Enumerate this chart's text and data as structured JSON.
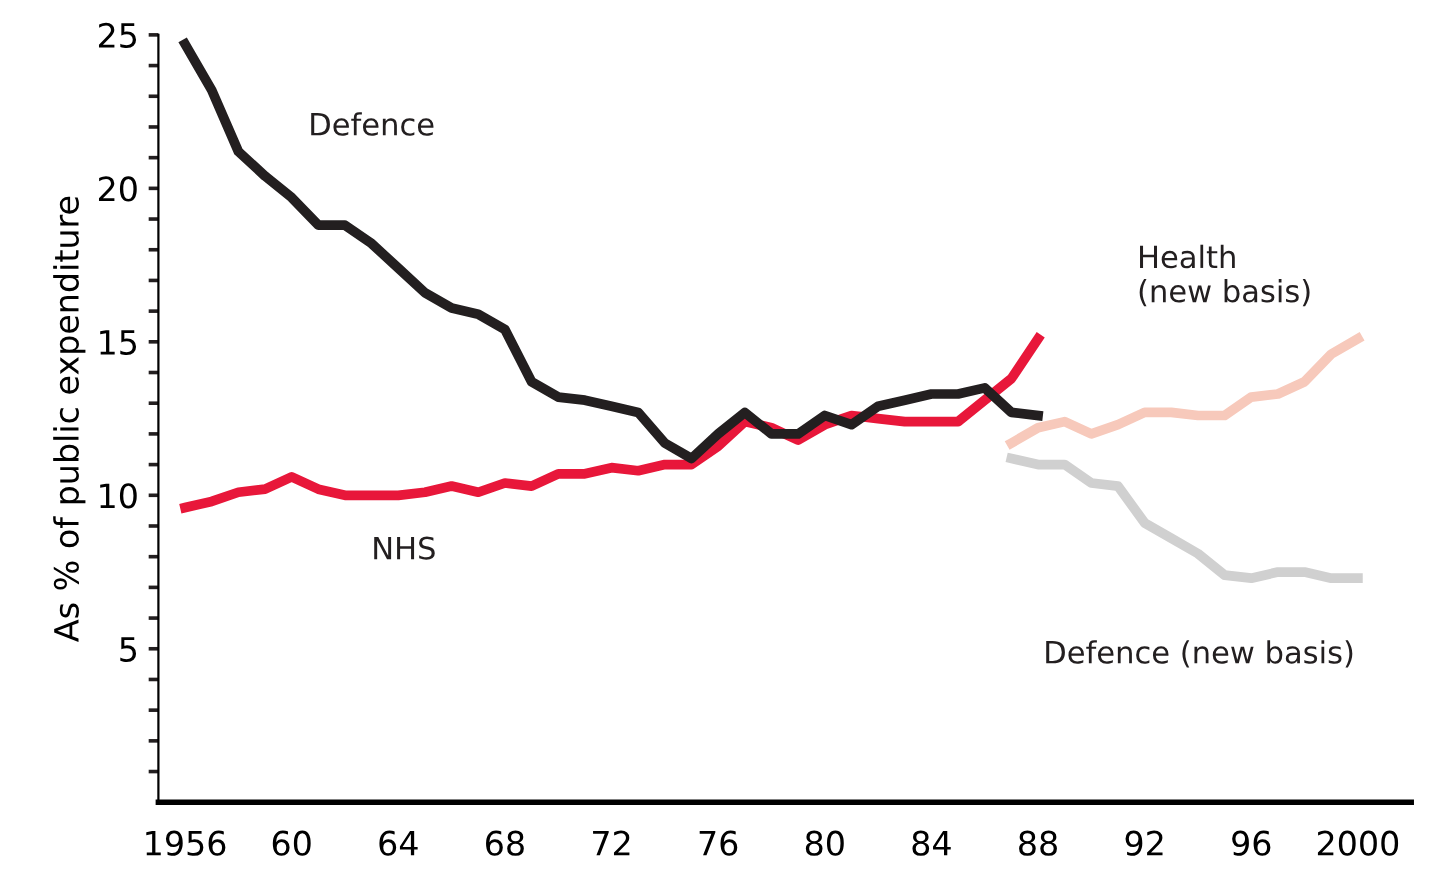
{
  "chart_data": {
    "type": "line",
    "ylabel": "As % of public expenditure",
    "line_style": "solid",
    "marker": "none",
    "grid": false,
    "legend": false,
    "xlim": [
      1955,
      2002
    ],
    "ylim": [
      0,
      25
    ],
    "xticks": [
      1956,
      {
        "value": 1960,
        "label": "60"
      },
      {
        "value": 1964,
        "label": "64"
      },
      {
        "value": 1968,
        "label": "68"
      },
      {
        "value": 1972,
        "label": "72"
      },
      {
        "value": 1976,
        "label": "76"
      },
      {
        "value": 1980,
        "label": "80"
      },
      {
        "value": 1984,
        "label": "84"
      },
      {
        "value": 1988,
        "label": "88"
      },
      {
        "value": 1992,
        "label": "92"
      },
      {
        "value": 1996,
        "label": "96"
      },
      2000
    ],
    "yticks": [
      {
        "value": 1,
        "label": null
      },
      {
        "value": 2,
        "label": null
      },
      {
        "value": 3,
        "label": null
      },
      {
        "value": 4,
        "label": null
      },
      5,
      {
        "value": 6,
        "label": null
      },
      {
        "value": 7,
        "label": null
      },
      {
        "value": 8,
        "label": null
      },
      {
        "value": 9,
        "label": null
      },
      10,
      {
        "value": 11,
        "label": null
      },
      {
        "value": 12,
        "label": null
      },
      {
        "value": 13,
        "label": null
      },
      {
        "value": 14,
        "label": null
      },
      15,
      {
        "value": 16,
        "label": null
      },
      {
        "value": 17,
        "label": null
      },
      {
        "value": 18,
        "label": null
      },
      {
        "value": 19,
        "label": null
      },
      20,
      {
        "value": 21,
        "label": null
      },
      {
        "value": 22,
        "label": null
      },
      {
        "value": 23,
        "label": null
      },
      {
        "value": 24,
        "label": null
      },
      25
    ],
    "series": [
      {
        "name": "NHS",
        "color": "#e8173a",
        "x": [
          1956,
          1957,
          1958,
          1959,
          1960,
          1961,
          1962,
          1963,
          1964,
          1965,
          1966,
          1967,
          1968,
          1969,
          1970,
          1971,
          1972,
          1973,
          1974,
          1975,
          1976,
          1977,
          1978,
          1979,
          1980,
          1981,
          1982,
          1983,
          1984,
          1985,
          1986,
          1987,
          1988
        ],
        "values": [
          9.6,
          9.8,
          10.1,
          10.2,
          10.6,
          10.2,
          10.0,
          10.0,
          10.0,
          10.1,
          10.3,
          10.1,
          10.4,
          10.3,
          10.7,
          10.7,
          10.9,
          10.8,
          11.0,
          11.0,
          11.6,
          12.4,
          12.2,
          11.8,
          12.3,
          12.6,
          12.5,
          12.4,
          12.4,
          12.4,
          13.1,
          13.8,
          15.1
        ]
      },
      {
        "name": "Defence",
        "color": "#231f20",
        "x": [
          1956,
          1957,
          1958,
          1959,
          1960,
          1961,
          1962,
          1963,
          1964,
          1965,
          1966,
          1967,
          1968,
          1969,
          1970,
          1971,
          1972,
          1973,
          1974,
          1975,
          1976,
          1977,
          1978,
          1979,
          1980,
          1981,
          1982,
          1983,
          1984,
          1985,
          1986,
          1987,
          1988
        ],
        "values": [
          24.7,
          23.2,
          21.2,
          20.4,
          19.7,
          18.8,
          18.8,
          18.2,
          17.4,
          16.6,
          16.1,
          15.9,
          15.4,
          13.7,
          13.2,
          13.1,
          12.9,
          12.7,
          11.7,
          11.2,
          12.0,
          12.7,
          12.0,
          12.0,
          12.6,
          12.3,
          12.9,
          13.1,
          13.3,
          13.3,
          13.5,
          12.7,
          12.6
        ]
      },
      {
        "name": "Health\n(new basis)",
        "color": "#f7c9bb",
        "x": [
          1987,
          1988,
          1989,
          1990,
          1991,
          1992,
          1993,
          1994,
          1995,
          1996,
          1997,
          1998,
          1999,
          2000
        ],
        "values": [
          11.7,
          12.2,
          12.4,
          12.0,
          12.3,
          12.7,
          12.7,
          12.6,
          12.6,
          13.2,
          13.3,
          13.7,
          14.6,
          15.1
        ]
      },
      {
        "name": "Defence (new basis)",
        "color": "#d0d0d0",
        "x": [
          1987,
          1988,
          1989,
          1990,
          1991,
          1992,
          1993,
          1994,
          1995,
          1996,
          1997,
          1998,
          1999,
          2000
        ],
        "values": [
          11.2,
          11.0,
          11.0,
          10.4,
          10.3,
          9.1,
          8.6,
          8.1,
          7.4,
          7.3,
          7.5,
          7.5,
          7.3,
          7.3
        ]
      }
    ]
  }
}
